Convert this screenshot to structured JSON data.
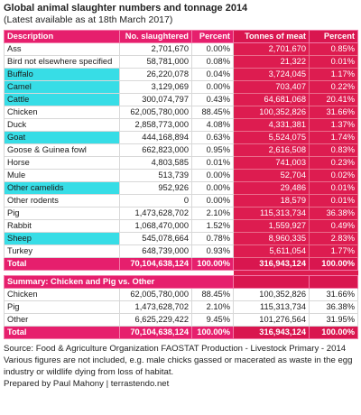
{
  "title": "Global animal slaughter numbers and tonnage 2014",
  "subtitle": "(Latest available as at 18th March 2017)",
  "headers": {
    "description": "Description",
    "slaughtered": "No. slaughtered",
    "percent": "Percent",
    "tonnes": "Tonnes of meat",
    "percent2": "Percent"
  },
  "colors": {
    "pink": "#e61f6d",
    "crimson": "#dd1c50",
    "cyan": "#37dde6"
  },
  "rows": [
    {
      "desc": "Ass",
      "num": "2,701,670",
      "pct": "0.00%",
      "tonnes": "2,701,670",
      "pct2": "0.85%",
      "highlight": false
    },
    {
      "desc": "Bird not elsewhere specified",
      "num": "58,781,000",
      "pct": "0.08%",
      "tonnes": "21,322",
      "pct2": "0.01%",
      "highlight": false
    },
    {
      "desc": "Buffalo",
      "num": "26,220,078",
      "pct": "0.04%",
      "tonnes": "3,724,045",
      "pct2": "1.17%",
      "highlight": true
    },
    {
      "desc": "Camel",
      "num": "3,129,069",
      "pct": "0.00%",
      "tonnes": "703,407",
      "pct2": "0.22%",
      "highlight": true
    },
    {
      "desc": "Cattle",
      "num": "300,074,797",
      "pct": "0.43%",
      "tonnes": "64,681,068",
      "pct2": "20.41%",
      "highlight": true
    },
    {
      "desc": "Chicken",
      "num": "62,005,780,000",
      "pct": "88.45%",
      "tonnes": "100,352,826",
      "pct2": "31.66%",
      "highlight": false
    },
    {
      "desc": "Duck",
      "num": "2,858,773,000",
      "pct": "4.08%",
      "tonnes": "4,331,381",
      "pct2": "1.37%",
      "highlight": false
    },
    {
      "desc": "Goat",
      "num": "444,168,894",
      "pct": "0.63%",
      "tonnes": "5,524,075",
      "pct2": "1.74%",
      "highlight": true
    },
    {
      "desc": "Goose & Guinea fowl",
      "num": "662,823,000",
      "pct": "0.95%",
      "tonnes": "2,616,508",
      "pct2": "0.83%",
      "highlight": false
    },
    {
      "desc": "Horse",
      "num": "4,803,585",
      "pct": "0.01%",
      "tonnes": "741,003",
      "pct2": "0.23%",
      "highlight": false
    },
    {
      "desc": "Mule",
      "num": "513,739",
      "pct": "0.00%",
      "tonnes": "52,704",
      "pct2": "0.02%",
      "highlight": false
    },
    {
      "desc": "Other camelids",
      "num": "952,926",
      "pct": "0.00%",
      "tonnes": "29,486",
      "pct2": "0.01%",
      "highlight": true
    },
    {
      "desc": "Other rodents",
      "num": "0",
      "pct": "0.00%",
      "tonnes": "18,579",
      "pct2": "0.01%",
      "highlight": false
    },
    {
      "desc": "Pig",
      "num": "1,473,628,702",
      "pct": "2.10%",
      "tonnes": "115,313,734",
      "pct2": "36.38%",
      "highlight": false
    },
    {
      "desc": "Rabbit",
      "num": "1,068,470,000",
      "pct": "1.52%",
      "tonnes": "1,559,927",
      "pct2": "0.49%",
      "highlight": false
    },
    {
      "desc": "Sheep",
      "num": "545,078,664",
      "pct": "0.78%",
      "tonnes": "8,960,335",
      "pct2": "2.83%",
      "highlight": true
    },
    {
      "desc": "Turkey",
      "num": "648,739,000",
      "pct": "0.93%",
      "tonnes": "5,611,054",
      "pct2": "1.77%",
      "highlight": false
    }
  ],
  "total": {
    "desc": "Total",
    "num": "70,104,638,124",
    "pct": "100.00%",
    "tonnes": "316,943,124",
    "pct2": "100.00%"
  },
  "summary": {
    "header": "Summary: Chicken and Pig vs. Other",
    "rows": [
      {
        "desc": "Chicken",
        "num": "62,005,780,000",
        "pct": "88.45%",
        "tonnes": "100,352,826",
        "pct2": "31.66%"
      },
      {
        "desc": "Pig",
        "num": "1,473,628,702",
        "pct": "2.10%",
        "tonnes": "115,313,734",
        "pct2": "36.38%"
      },
      {
        "desc": "Other",
        "num": "6,625,229,422",
        "pct": "9.45%",
        "tonnes": "101,276,564",
        "pct2": "31.95%"
      }
    ],
    "total": {
      "desc": "Total",
      "num": "70,104,638,124",
      "pct": "100.00%",
      "tonnes": "316,943,124",
      "pct2": "100.00%"
    }
  },
  "notes": [
    "Source: Food & Agriculture Organization FAOSTAT Production - Livestock Primary - 2014",
    "Various figures are not included, e.g. male chicks gassed or macerated as waste in the egg industry or wildlife dying from loss of habitat.",
    "Prepared by Paul Mahony | terrastendo.net"
  ]
}
